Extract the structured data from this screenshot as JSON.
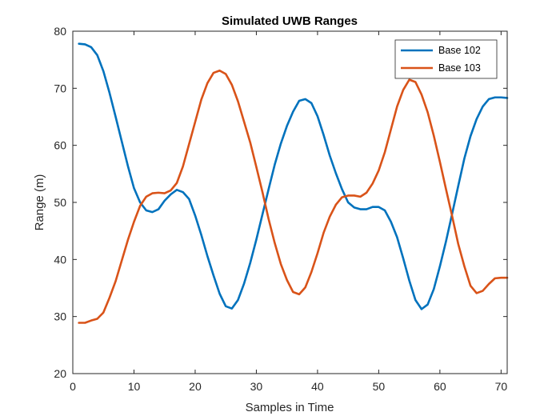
{
  "chart_data": {
    "type": "line",
    "title": "Simulated UWB Ranges",
    "xlabel": "Samples in Time",
    "ylabel": "Range (m)",
    "xlim": [
      0,
      71
    ],
    "ylim": [
      20,
      80
    ],
    "xticks": [
      0,
      10,
      20,
      30,
      40,
      50,
      60,
      70
    ],
    "yticks": [
      20,
      30,
      40,
      50,
      60,
      70,
      80
    ],
    "grid": false,
    "legend_position": "top-right",
    "series": [
      {
        "name": "Base 102",
        "color": "#0072BD",
        "x": [
          1,
          2,
          3,
          4,
          5,
          6,
          7,
          8,
          9,
          10,
          11,
          12,
          13,
          14,
          15,
          16,
          17,
          18,
          19,
          20,
          21,
          22,
          23,
          24,
          25,
          26,
          27,
          28,
          29,
          30,
          31,
          32,
          33,
          34,
          35,
          36,
          37,
          38,
          39,
          40,
          41,
          42,
          43,
          44,
          45,
          46,
          47,
          48,
          49,
          50,
          51,
          52,
          53,
          54,
          55,
          56,
          57,
          58,
          59,
          60,
          61,
          62,
          63,
          64,
          65,
          66,
          67,
          68,
          69,
          70,
          71
        ],
        "y": [
          77.8,
          77.7,
          77.2,
          75.8,
          73.0,
          69.2,
          65.0,
          60.7,
          56.4,
          52.5,
          50.0,
          48.6,
          48.3,
          48.8,
          50.3,
          51.4,
          52.2,
          51.8,
          50.6,
          47.7,
          44.3,
          40.6,
          37.2,
          34.0,
          31.8,
          31.4,
          32.9,
          35.8,
          39.4,
          43.5,
          47.9,
          52.3,
          56.6,
          60.3,
          63.4,
          65.9,
          67.8,
          68.1,
          67.4,
          65.1,
          61.8,
          58.2,
          55.1,
          52.3,
          50.0,
          49.1,
          48.8,
          48.8,
          49.2,
          49.2,
          48.6,
          46.6,
          43.9,
          40.2,
          36.3,
          32.9,
          31.3,
          32.1,
          34.8,
          38.8,
          43.2,
          48.0,
          52.9,
          57.7,
          61.6,
          64.6,
          66.8,
          68.1,
          68.4,
          68.4,
          68.3
        ]
      },
      {
        "name": "Base 103",
        "color": "#D95319",
        "x": [
          1,
          2,
          3,
          4,
          5,
          6,
          7,
          8,
          9,
          10,
          11,
          12,
          13,
          14,
          15,
          16,
          17,
          18,
          19,
          20,
          21,
          22,
          23,
          24,
          25,
          26,
          27,
          28,
          29,
          30,
          31,
          32,
          33,
          34,
          35,
          36,
          37,
          38,
          39,
          40,
          41,
          42,
          43,
          44,
          45,
          46,
          47,
          48,
          49,
          50,
          51,
          52,
          53,
          54,
          55,
          56,
          57,
          58,
          59,
          60,
          61,
          62,
          63,
          64,
          65,
          66,
          67,
          68,
          69,
          70,
          71
        ],
        "y": [
          28.9,
          28.9,
          29.3,
          29.6,
          30.7,
          33.3,
          36.2,
          39.8,
          43.4,
          46.6,
          49.4,
          51.0,
          51.6,
          51.7,
          51.6,
          52.1,
          53.4,
          56.3,
          60.2,
          64.1,
          68.0,
          70.9,
          72.7,
          73.1,
          72.5,
          70.6,
          67.7,
          64.1,
          60.5,
          56.2,
          51.8,
          47.1,
          42.9,
          39.2,
          36.4,
          34.3,
          33.9,
          35.1,
          37.8,
          41.1,
          44.7,
          47.5,
          49.6,
          50.9,
          51.2,
          51.2,
          51.0,
          51.7,
          53.3,
          55.6,
          58.8,
          62.8,
          66.8,
          69.7,
          71.5,
          71.1,
          68.9,
          65.8,
          61.7,
          57.1,
          52.3,
          47.6,
          42.7,
          38.8,
          35.4,
          34.1,
          34.5,
          35.7,
          36.7,
          36.8,
          36.8
        ]
      }
    ]
  }
}
